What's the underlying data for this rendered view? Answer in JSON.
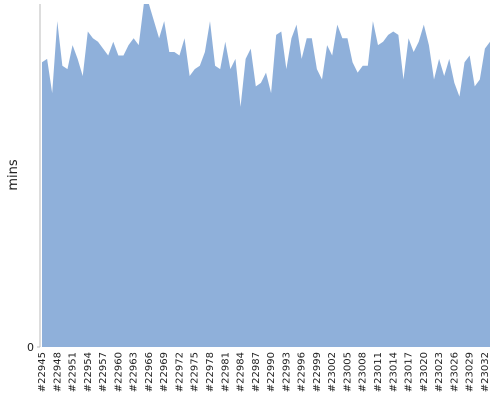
{
  "chart_data": {
    "type": "area",
    "ylabel": "mins",
    "color": "#8fb0da",
    "ylim": [
      0,
      100
    ],
    "yticks": [
      0
    ],
    "categories": [
      "#22945",
      null,
      null,
      "#22948",
      null,
      null,
      "#22951",
      null,
      null,
      "#22954",
      null,
      null,
      "#22957",
      null,
      null,
      "#22960",
      null,
      null,
      "#22963",
      null,
      null,
      "#22966",
      null,
      null,
      "#22969",
      null,
      null,
      "#22972",
      null,
      null,
      "#22975",
      null,
      null,
      "#22978",
      null,
      null,
      "#22981",
      null,
      null,
      "#22984",
      null,
      null,
      "#22987",
      null,
      null,
      "#22990",
      null,
      null,
      "#22993",
      null,
      null,
      "#22996",
      null,
      null,
      "#22999",
      null,
      null,
      "#23002",
      null,
      null,
      "#23005",
      null,
      null,
      "#23008",
      null,
      null,
      "#23011",
      null,
      null,
      "#23014",
      null,
      null,
      "#23017",
      null,
      null,
      "#23020",
      null,
      null,
      "#23023",
      null,
      null,
      "#23026",
      null,
      null,
      "#23029",
      null,
      null,
      "#23032",
      null
    ],
    "values": [
      83,
      84,
      74,
      95,
      82,
      81,
      88,
      84,
      79,
      92,
      90,
      89,
      87,
      85,
      89,
      85,
      85,
      88,
      90,
      88,
      100,
      100,
      95,
      90,
      95,
      86,
      86,
      85,
      90,
      79,
      81,
      82,
      86,
      95,
      82,
      81,
      89,
      81,
      84,
      70,
      84,
      87,
      76,
      77,
      80,
      74,
      91,
      92,
      81,
      90,
      94,
      84,
      90,
      90,
      81,
      78,
      88,
      85,
      94,
      90,
      90,
      83,
      80,
      82,
      82,
      95,
      88,
      89,
      91,
      92,
      91,
      78,
      90,
      86,
      89,
      94,
      88,
      78,
      84,
      79,
      84,
      77,
      73,
      83,
      85,
      76,
      78,
      87,
      89
    ]
  }
}
